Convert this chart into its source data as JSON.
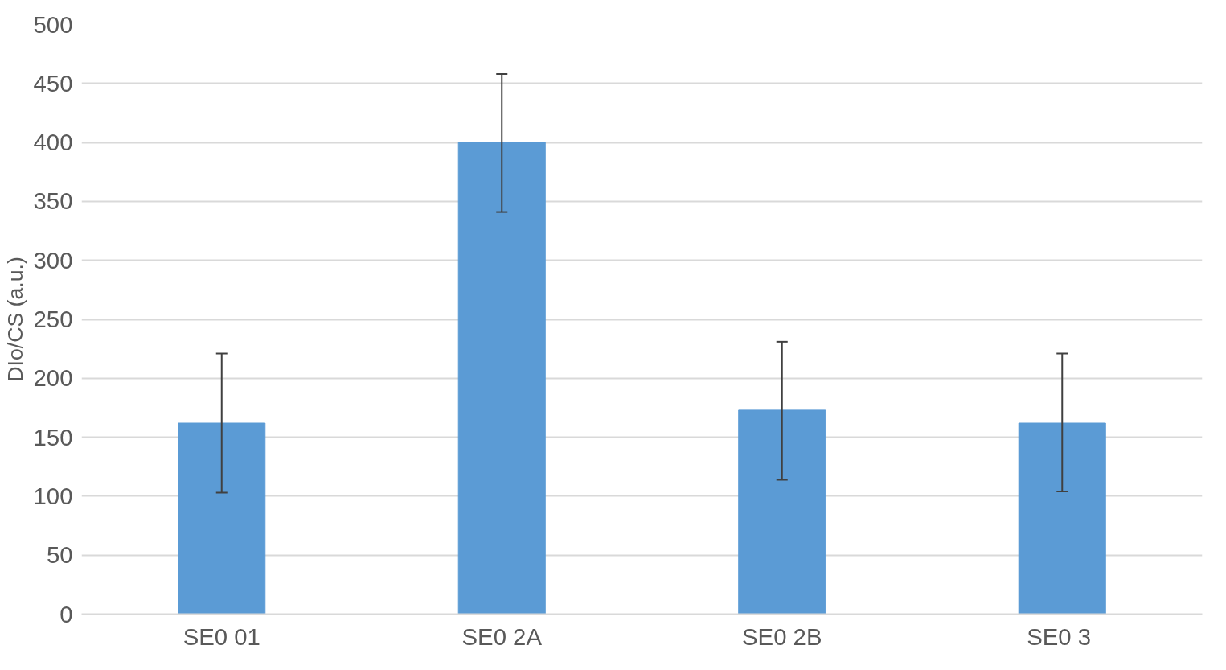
{
  "chart_data": {
    "type": "bar",
    "ylabel": "DIo/CS (a.u.)",
    "categories": [
      "SE0 01",
      "SE0 2A",
      "SE0 2B",
      "SE0  3"
    ],
    "values": [
      162,
      400,
      173,
      162
    ],
    "errors": [
      [
        103,
        221
      ],
      [
        341,
        458
      ],
      [
        114,
        231
      ],
      [
        104,
        221
      ]
    ],
    "color": "#5b9bd5",
    "ylim": [
      0,
      500
    ],
    "yticks": [
      0,
      50,
      100,
      150,
      200,
      250,
      300,
      350,
      400,
      450,
      500
    ],
    "grid": "y"
  }
}
